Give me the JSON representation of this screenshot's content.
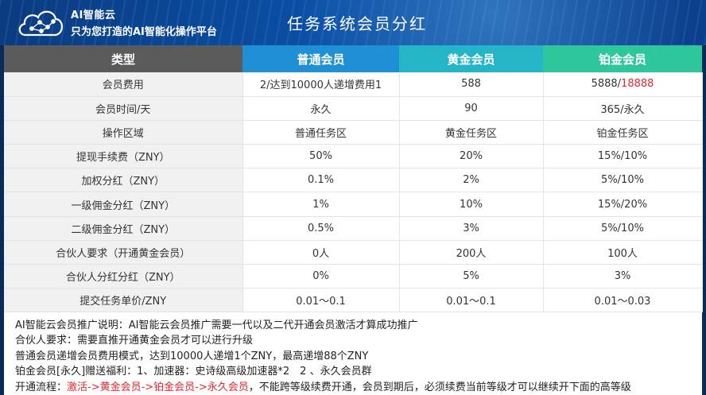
{
  "header": {
    "brand_name": "AI智能云",
    "brand_slogan": "只为您打造的AI智能化操作平台",
    "title": "任务系统会员分红",
    "logo_icon": "cloud-network-icon"
  },
  "table": {
    "columns": [
      "类型",
      "普通会员",
      "黄金会员",
      "铂金会员"
    ],
    "header_colors": [
      "#5b5b5b",
      "#1f8fd6",
      "#25b5c8",
      "#2ec79b"
    ],
    "rows": [
      {
        "type": "会员费用",
        "regular": "2/达到10000人递增费用1",
        "gold": "588",
        "platinum_prefix": "5888/",
        "platinum_highlight": "18888"
      },
      {
        "type": "会员时间/天",
        "regular": "永久",
        "gold": "90",
        "platinum": "365/永久"
      },
      {
        "type": "操作区域",
        "regular": "普通任务区",
        "gold": "黄金任务区",
        "platinum": "铂金任务区"
      },
      {
        "type": "提现手续费（ZNY）",
        "regular": "50%",
        "gold": "20%",
        "platinum": "15%/10%"
      },
      {
        "type": "加权分红（ZNY）",
        "regular": "0.1%",
        "gold": "2%",
        "platinum": "5%/10%"
      },
      {
        "type": "一级佣金分红（ZNY）",
        "regular": "1%",
        "gold": "10%",
        "platinum": "15%/20%"
      },
      {
        "type": "二级佣金分红（ZNY）",
        "regular": "0.5%",
        "gold": "3%",
        "platinum": "5%/10%"
      },
      {
        "type": "合伙人要求（开通黄金会员）",
        "regular": "0人",
        "gold": "200人",
        "platinum": "100人"
      },
      {
        "type": "合伙人分红分红（ZNY）",
        "regular": "0%",
        "gold": "5%",
        "platinum": "3%"
      },
      {
        "type": "提交任务单价/ZNY",
        "regular": "0.01～0.1",
        "gold": "0.01～0.1",
        "platinum": "0.01～0.03"
      }
    ]
  },
  "notes": {
    "line1": "AI智能云会员推广说明：AI智能云会员推广需要一代以及二代开通会员激活才算成功推广",
    "line2": "合伙人要求：需要直推开通黄金会员才可以进行升级",
    "line3": "普通会员递增会员费用模式，达到10000人递增1个ZNY，最高递增88个ZNY",
    "line4": "铂金会员[永久]赠送福利：1、加速器：史诗级高级加速器*2　2 、永久会员群",
    "line5_prefix": "开通流程：",
    "line5_highlight": "激活->黄金会员->铂金会员->永久会员",
    "line5_suffix": "，不能跨等级续费开通，会员到期后，必须续费当前等级才可以继续开下面的高等级"
  }
}
